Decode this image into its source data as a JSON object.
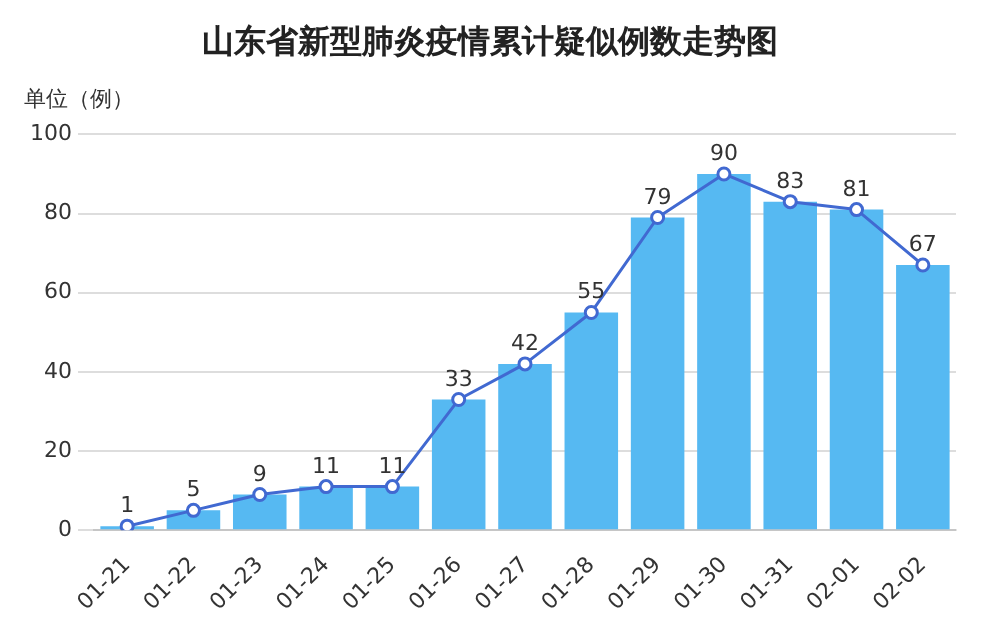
{
  "chart_data": {
    "type": "bar",
    "title": "山东省新型肺炎疫情累计疑似例数走势图",
    "ylabel": "单位（例）",
    "categories": [
      "01-21",
      "01-22",
      "01-23",
      "01-24",
      "01-25",
      "01-26",
      "01-27",
      "01-28",
      "01-29",
      "01-30",
      "01-31",
      "02-01",
      "02-02"
    ],
    "series": [
      {
        "color": "#56b9f2",
        "values": [
          1,
          5,
          9,
          11,
          11,
          33,
          42,
          55,
          79,
          90,
          83,
          81,
          67
        ]
      },
      {
        "type": "line",
        "color": "#4169d1",
        "values": [
          1,
          5,
          9,
          11,
          11,
          33,
          42,
          55,
          79,
          90,
          83,
          81,
          67
        ],
        "value_labels": [
          "1",
          "5",
          "9",
          "11",
          "11",
          "33",
          "42",
          "55",
          "79",
          "90",
          "83",
          "81",
          "67"
        ]
      }
    ],
    "ylim": [
      0,
      100
    ],
    "yticks": [
      0,
      20,
      40,
      60,
      80,
      100
    ],
    "grid": "y",
    "marker": "circle",
    "legend": false
  }
}
